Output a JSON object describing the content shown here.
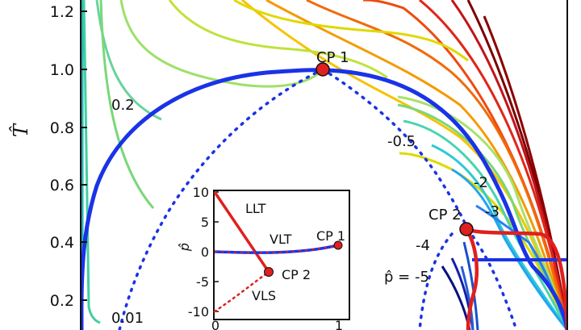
{
  "chart_data": {
    "type": "line",
    "ylabel": "T̂",
    "y_ticks": [
      "0.2",
      "0.4",
      "0.6",
      "0.8",
      "1.0",
      "1.2"
    ],
    "ylim": [
      0.08,
      1.32
    ],
    "x_range_note": "",
    "annotations": {
      "cp1": "CP 1",
      "cp2": "CP 2",
      "iso_0_2": "0.2",
      "iso_0_01": "0.01",
      "iso_m0_5": "-0.5",
      "iso_m2": "-2",
      "iso_m3": "-3",
      "iso_m4": "-4",
      "iso_m5": "p̂ = -5"
    },
    "points": {
      "cp1": {
        "x": 1.0,
        "y": 1.0
      },
      "cp2": {
        "x": 0.47,
        "y": 0.3
      }
    },
    "inset": {
      "ylabel": "p̂",
      "xlabel": "ρ̂",
      "y_ticks": [
        "10",
        "5",
        "0",
        "-5",
        "-10"
      ],
      "x_ticks": [
        "0",
        "1"
      ],
      "labels": {
        "llt": "LLT",
        "vlt": "VLT",
        "vls": "VLS",
        "cp1": "CP 1",
        "cp2": "CP 2"
      }
    },
    "colors": {
      "binodal": "#1a33e6",
      "spinodal": "#1a33e6",
      "critical_point": "#e01f1f",
      "hot": "#7a0000",
      "cold": "#00008b"
    }
  }
}
